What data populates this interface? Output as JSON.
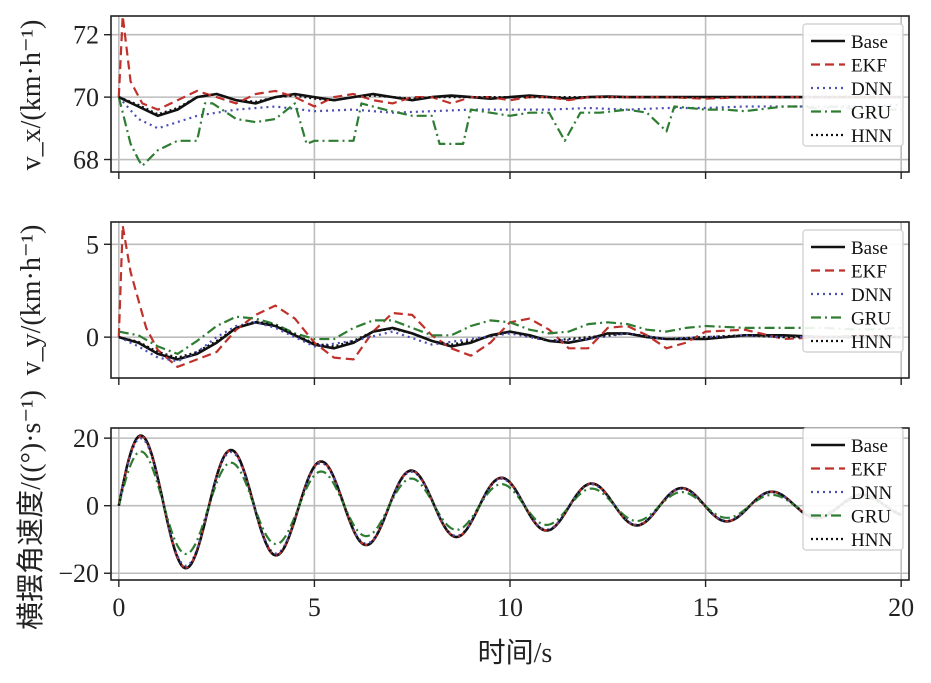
{
  "x_label": "时间/s",
  "x_ticks": [
    0,
    5,
    10,
    15,
    20
  ],
  "series_styles": [
    {
      "name": "Base",
      "color": "#111111",
      "dash": "",
      "width": 2.6
    },
    {
      "name": "EKF",
      "color": "#c0312b",
      "dash": "9,5",
      "width": 2.2
    },
    {
      "name": "DNN",
      "color": "#4b4fb5",
      "dash": "2,4",
      "width": 2.2
    },
    {
      "name": "GRU",
      "color": "#2e7d32",
      "dash": "10,4,2,4",
      "width": 2.2
    },
    {
      "name": "HNN",
      "color": "#111111",
      "dash": "2,3",
      "width": 2.2
    }
  ],
  "chart_data": [
    {
      "type": "line",
      "ylabel": "v_x/(km·h⁻¹)",
      "ylim": [
        67.6,
        72.6
      ],
      "yticks": [
        68,
        70,
        72
      ],
      "xlim": [
        -0.2,
        20.2
      ],
      "grid": true,
      "legend": [
        "Base",
        "EKF",
        "DNN",
        "GRU",
        "HNN"
      ],
      "legend_position": "right",
      "series": [
        {
          "name": "Base",
          "x": [
            0,
            0.5,
            1,
            1.5,
            2,
            2.5,
            3,
            3.5,
            4,
            4.5,
            5,
            5.5,
            6,
            6.5,
            7,
            7.5,
            8,
            8.5,
            9,
            9.5,
            10,
            10.5,
            11,
            11.5,
            12,
            12.5,
            13,
            13.5,
            14,
            15,
            16,
            17,
            18,
            19,
            20
          ],
          "values": [
            70.0,
            69.7,
            69.4,
            69.6,
            70.0,
            70.1,
            69.9,
            69.8,
            70.0,
            70.1,
            70.0,
            69.9,
            70.0,
            70.1,
            70.0,
            69.9,
            70.0,
            70.05,
            70.0,
            69.95,
            70.0,
            70.05,
            70.0,
            69.95,
            70.0,
            70.02,
            70.0,
            70.0,
            70.0,
            70.0,
            70.0,
            70.0,
            70.0,
            70.0,
            70.0
          ]
        },
        {
          "name": "EKF",
          "x": [
            0,
            0.1,
            0.3,
            0.6,
            1,
            1.5,
            2,
            2.5,
            3,
            3.5,
            4,
            4.5,
            5,
            5.5,
            6,
            6.5,
            7,
            7.5,
            8,
            8.5,
            9,
            9.5,
            10,
            10.5,
            11,
            11.5,
            12,
            13,
            14,
            15,
            16,
            17,
            18,
            19,
            20
          ],
          "values": [
            70.0,
            72.6,
            70.5,
            69.8,
            69.6,
            69.9,
            70.2,
            70.0,
            69.8,
            70.1,
            70.2,
            70.0,
            69.7,
            70.0,
            70.1,
            69.9,
            69.8,
            70.0,
            70.0,
            69.8,
            70.0,
            70.0,
            69.9,
            70.0,
            70.0,
            69.9,
            70.0,
            70.0,
            70.0,
            69.95,
            70.0,
            70.0,
            70.0,
            70.0,
            70.0
          ]
        },
        {
          "name": "DNN",
          "x": [
            0,
            0.5,
            1,
            1.5,
            2,
            3,
            4,
            5,
            6,
            7,
            8,
            9,
            10,
            11,
            12,
            13,
            14,
            15,
            16,
            17,
            18,
            19,
            20
          ],
          "values": [
            70.0,
            69.3,
            69.0,
            69.2,
            69.4,
            69.6,
            69.7,
            69.55,
            69.6,
            69.5,
            69.55,
            69.6,
            69.6,
            69.6,
            69.65,
            69.6,
            69.65,
            69.65,
            69.7,
            69.7,
            69.7,
            69.72,
            69.75
          ]
        },
        {
          "name": "GRU",
          "x": [
            0,
            0.3,
            0.5,
            0.6,
            1,
            1.5,
            2,
            2.2,
            2.4,
            3,
            3.5,
            4,
            4.5,
            4.8,
            5.0,
            5.5,
            6.0,
            6.2,
            6.8,
            7.5,
            8,
            8.2,
            8.8,
            9.0,
            9.5,
            10,
            10.5,
            11,
            11.4,
            11.8,
            12.3,
            13,
            13.5,
            14,
            14.2,
            15,
            15.5,
            16,
            17,
            17.5,
            18,
            18.2,
            19,
            20
          ],
          "values": [
            70.0,
            68.5,
            68.0,
            67.8,
            68.3,
            68.6,
            68.6,
            69.8,
            69.8,
            69.3,
            69.2,
            69.3,
            69.8,
            68.5,
            68.6,
            68.6,
            68.6,
            69.8,
            69.6,
            69.4,
            69.4,
            68.5,
            68.5,
            69.6,
            69.5,
            69.4,
            69.5,
            69.5,
            68.6,
            69.5,
            69.5,
            69.6,
            69.5,
            68.9,
            69.7,
            69.6,
            69.6,
            69.55,
            69.7,
            69.7,
            69.6,
            69.7,
            69.6,
            69.6
          ]
        },
        {
          "name": "HNN",
          "x": [
            0,
            0.5,
            1,
            1.5,
            2,
            2.5,
            3,
            3.5,
            4,
            4.5,
            5,
            5.5,
            6,
            6.5,
            7,
            7.5,
            8,
            8.5,
            9,
            10,
            11,
            12,
            13,
            14,
            15,
            16,
            17,
            18,
            19,
            20
          ],
          "values": [
            70.0,
            69.75,
            69.45,
            69.65,
            70.0,
            70.1,
            69.9,
            69.85,
            70.0,
            70.05,
            69.95,
            69.9,
            70.0,
            70.05,
            70.0,
            69.95,
            70.0,
            70.0,
            70.0,
            70.0,
            70.0,
            70.0,
            70.0,
            70.0,
            70.0,
            70.0,
            70.0,
            70.0,
            70.0,
            70.0
          ]
        }
      ]
    },
    {
      "type": "line",
      "ylabel": "v_y/(km·h⁻¹)",
      "ylim": [
        -2.2,
        6.2
      ],
      "yticks": [
        0,
        5
      ],
      "xlim": [
        -0.2,
        20.2
      ],
      "grid": true,
      "legend": [
        "Base",
        "EKF",
        "DNN",
        "GRU",
        "HNN"
      ],
      "legend_position": "right",
      "series": [
        {
          "name": "Base",
          "x": [
            0,
            0.5,
            1,
            1.5,
            2,
            2.5,
            3,
            3.5,
            4,
            4.5,
            5,
            5.5,
            6,
            6.5,
            7,
            7.5,
            8,
            8.5,
            9,
            9.5,
            10,
            10.5,
            11,
            11.5,
            12,
            12.5,
            13,
            13.5,
            14,
            15,
            16,
            17,
            18,
            19,
            20
          ],
          "values": [
            0,
            -0.3,
            -0.9,
            -1.2,
            -0.9,
            -0.3,
            0.5,
            0.8,
            0.6,
            0.1,
            -0.4,
            -0.6,
            -0.3,
            0.3,
            0.5,
            0.2,
            -0.2,
            -0.5,
            -0.3,
            0.1,
            0.3,
            0.1,
            -0.2,
            -0.3,
            -0.1,
            0.2,
            0.2,
            0.0,
            -0.1,
            -0.1,
            0.1,
            0.1,
            0.0,
            0.0,
            0.0
          ]
        },
        {
          "name": "EKF",
          "x": [
            0,
            0.1,
            0.3,
            0.7,
            1,
            1.5,
            2,
            2.5,
            3,
            3.5,
            4,
            4.5,
            5,
            5.5,
            6,
            6.5,
            7,
            7.5,
            8,
            8.5,
            9,
            9.5,
            10,
            10.5,
            11,
            11.5,
            12,
            12.5,
            13,
            13.5,
            14,
            14.5,
            15,
            16,
            17,
            18,
            19,
            20
          ],
          "values": [
            0,
            6.0,
            3.5,
            0.5,
            -0.7,
            -1.6,
            -1.2,
            -0.8,
            0.4,
            1.2,
            1.7,
            1.0,
            -0.3,
            -1.1,
            -1.2,
            0.3,
            1.3,
            1.2,
            0.1,
            -0.6,
            -1.0,
            -0.3,
            0.8,
            1.0,
            0.4,
            -0.6,
            -0.6,
            0.5,
            0.6,
            0.1,
            -0.6,
            -0.3,
            0.3,
            0.4,
            -0.1,
            0.0,
            0.1,
            0.0
          ]
        },
        {
          "name": "DNN",
          "x": [
            0,
            0.5,
            1,
            1.5,
            2,
            2.5,
            3,
            3.5,
            4,
            5,
            6,
            7,
            8,
            9,
            10,
            11,
            12,
            13,
            14,
            15,
            16,
            17,
            18,
            19,
            20
          ],
          "values": [
            0,
            -0.5,
            -1.1,
            -1.3,
            -0.8,
            0.0,
            0.6,
            0.8,
            0.5,
            -0.5,
            -0.2,
            0.3,
            -0.4,
            -0.1,
            0.2,
            -0.2,
            -0.1,
            0.2,
            -0.1,
            0.0,
            0.1,
            0.0,
            0.0,
            0.0,
            0.0
          ]
        },
        {
          "name": "GRU",
          "x": [
            0,
            0.5,
            1,
            1.5,
            2,
            2.5,
            3,
            3.5,
            4,
            4.5,
            5,
            5.5,
            6,
            6.5,
            7,
            7.5,
            8,
            8.5,
            9,
            9.5,
            10,
            10.5,
            11,
            11.5,
            12,
            12.5,
            13,
            13.5,
            14,
            14.5,
            15,
            16,
            17,
            18,
            19,
            20
          ],
          "values": [
            0.3,
            0.1,
            -0.5,
            -0.9,
            -0.2,
            0.6,
            1.1,
            1.0,
            0.7,
            0.2,
            -0.1,
            -0.1,
            0.5,
            0.9,
            0.9,
            0.5,
            0.1,
            0.1,
            0.6,
            0.9,
            0.8,
            0.4,
            0.2,
            0.3,
            0.7,
            0.8,
            0.7,
            0.4,
            0.3,
            0.5,
            0.6,
            0.5,
            0.5,
            0.5,
            0.4,
            0.5
          ]
        },
        {
          "name": "HNN",
          "x": [
            0,
            0.5,
            1,
            1.5,
            2,
            2.5,
            3,
            3.5,
            4,
            4.5,
            5,
            5.5,
            6,
            6.5,
            7,
            7.5,
            8,
            8.5,
            9,
            10,
            11,
            12,
            13,
            14,
            15,
            16,
            17,
            18,
            19,
            20
          ],
          "values": [
            0,
            -0.25,
            -0.8,
            -1.1,
            -0.8,
            -0.2,
            0.5,
            0.85,
            0.65,
            0.15,
            -0.35,
            -0.5,
            -0.2,
            0.3,
            0.45,
            0.2,
            -0.2,
            -0.4,
            -0.2,
            0.3,
            -0.2,
            0.0,
            0.2,
            -0.1,
            0.0,
            0.1,
            0.0,
            0.0,
            0.0,
            0.0
          ]
        }
      ]
    },
    {
      "type": "line",
      "ylabel": "横摆角速度/((°)·s⁻¹)",
      "ylim": [
        -22,
        23
      ],
      "yticks": [
        -20,
        0,
        20
      ],
      "xlim": [
        -0.2,
        20.2
      ],
      "grid": true,
      "legend": [
        "Base",
        "EKF",
        "DNN",
        "GRU",
        "HNN"
      ],
      "legend_position": "right",
      "series": [
        {
          "name": "Base",
          "osc": {
            "amp": 22.0,
            "decay": 0.1,
            "omega": 2.9,
            "gru_scale": 1.0
          }
        },
        {
          "name": "EKF",
          "osc": {
            "amp": 21.8,
            "decay": 0.1,
            "omega": 2.9,
            "gru_scale": 1.0
          }
        },
        {
          "name": "DNN",
          "osc": {
            "amp": 21.2,
            "decay": 0.1,
            "omega": 2.9,
            "gru_scale": 1.0
          }
        },
        {
          "name": "GRU",
          "osc": {
            "amp": 17.0,
            "decay": 0.1,
            "omega": 2.9,
            "gru_scale": 1.0
          }
        },
        {
          "name": "HNN",
          "osc": {
            "amp": 21.9,
            "decay": 0.1,
            "omega": 2.9,
            "gru_scale": 1.0
          }
        }
      ]
    }
  ]
}
